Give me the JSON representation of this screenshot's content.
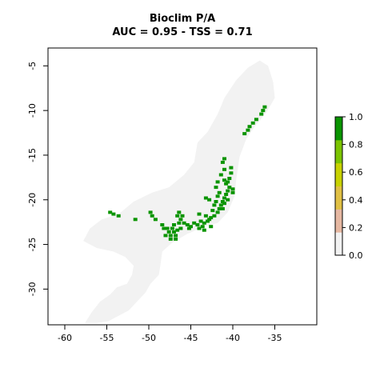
{
  "chart_data": {
    "type": "heatmap",
    "title": "Bioclim P/A",
    "subtitle": "AUC = 0.95 - TSS = 0.71",
    "xlabel": "",
    "ylabel": "",
    "xlim": [
      -62,
      -30
    ],
    "ylim": [
      -34,
      -3
    ],
    "x_ticks": [
      "-60",
      "-55",
      "-50",
      "-45",
      "-40",
      "-35"
    ],
    "y_ticks": [
      "-5",
      "-10",
      "-15",
      "-20",
      "-25",
      "-30"
    ],
    "grid": false,
    "legend": {
      "placement": "right",
      "range": [
        0,
        1
      ],
      "ticks": [
        "0.0",
        "0.2",
        "0.4",
        "0.6",
        "0.8",
        "1.0"
      ],
      "colors": [
        "#f2f2f2",
        "#e6b8a2",
        "#e0c044",
        "#c8d200",
        "#7bc400",
        "#0a9400"
      ]
    },
    "background_region_color": "#f2f2f2",
    "presence_color": "#0a9400",
    "presence_value": 1.0,
    "absence_value": 0.0,
    "background_region": [
      [
        -57.6,
        -33.8
      ],
      [
        -56.8,
        -32.6
      ],
      [
        -55.8,
        -31.4
      ],
      [
        -54.6,
        -30.6
      ],
      [
        -53.8,
        -29.8
      ],
      [
        -52.6,
        -29.4
      ],
      [
        -52.0,
        -28.4
      ],
      [
        -51.8,
        -27.4
      ],
      [
        -52.8,
        -26.4
      ],
      [
        -54.2,
        -25.8
      ],
      [
        -56.2,
        -25.4
      ],
      [
        -57.8,
        -24.6
      ],
      [
        -57.0,
        -23.2
      ],
      [
        -55.6,
        -22.2
      ],
      [
        -53.6,
        -21.6
      ],
      [
        -51.8,
        -20.2
      ],
      [
        -49.6,
        -19.2
      ],
      [
        -47.6,
        -18.6
      ],
      [
        -45.8,
        -17.2
      ],
      [
        -44.6,
        -15.8
      ],
      [
        -44.2,
        -13.6
      ],
      [
        -43.0,
        -12.4
      ],
      [
        -41.8,
        -10.4
      ],
      [
        -41.0,
        -8.6
      ],
      [
        -39.6,
        -6.6
      ],
      [
        -38.2,
        -5.2
      ],
      [
        -36.8,
        -4.4
      ],
      [
        -35.8,
        -5.0
      ],
      [
        -35.2,
        -6.8
      ],
      [
        -35.0,
        -8.6
      ],
      [
        -36.0,
        -10.2
      ],
      [
        -37.4,
        -11.8
      ],
      [
        -38.4,
        -13.2
      ],
      [
        -39.2,
        -15.2
      ],
      [
        -39.6,
        -17.8
      ],
      [
        -39.8,
        -19.6
      ],
      [
        -40.6,
        -21.4
      ],
      [
        -41.8,
        -22.6
      ],
      [
        -43.4,
        -23.0
      ],
      [
        -45.4,
        -23.8
      ],
      [
        -47.2,
        -24.8
      ],
      [
        -48.4,
        -25.8
      ],
      [
        -48.6,
        -27.2
      ],
      [
        -48.8,
        -28.4
      ],
      [
        -49.8,
        -29.4
      ],
      [
        -50.4,
        -30.4
      ],
      [
        -51.4,
        -31.4
      ],
      [
        -52.4,
        -32.4
      ],
      [
        -53.6,
        -33.0
      ],
      [
        -54.8,
        -33.6
      ],
      [
        -56.2,
        -33.8
      ]
    ],
    "presence_cells": [
      [
        -36.2,
        -9.6
      ],
      [
        -36.4,
        -10.0
      ],
      [
        -36.6,
        -10.4
      ],
      [
        -37.2,
        -11.0
      ],
      [
        -37.6,
        -11.4
      ],
      [
        -38.0,
        -11.8
      ],
      [
        -38.2,
        -12.2
      ],
      [
        -38.6,
        -12.6
      ],
      [
        -40.2,
        -16.4
      ],
      [
        -40.2,
        -17.0
      ],
      [
        -40.4,
        -17.6
      ],
      [
        -40.6,
        -18.0
      ],
      [
        -40.8,
        -18.2
      ],
      [
        -41.0,
        -15.4
      ],
      [
        -41.2,
        -15.8
      ],
      [
        -41.0,
        -16.6
      ],
      [
        -41.4,
        -17.2
      ],
      [
        -41.0,
        -17.8
      ],
      [
        -40.4,
        -18.6
      ],
      [
        -40.6,
        -19.0
      ],
      [
        -40.8,
        -19.4
      ],
      [
        -41.0,
        -19.8
      ],
      [
        -41.2,
        -20.2
      ],
      [
        -41.4,
        -20.6
      ],
      [
        -41.6,
        -21.0
      ],
      [
        -41.0,
        -20.4
      ],
      [
        -40.6,
        -20.0
      ],
      [
        -41.8,
        -19.6
      ],
      [
        -41.6,
        -19.2
      ],
      [
        -42.0,
        -20.2
      ],
      [
        -42.2,
        -20.6
      ],
      [
        -41.8,
        -21.4
      ],
      [
        -41.2,
        -21.0
      ],
      [
        -42.4,
        -21.2
      ],
      [
        -42.0,
        -18.6
      ],
      [
        -41.8,
        -18.0
      ],
      [
        -40.0,
        -19.2
      ],
      [
        -40.0,
        -18.8
      ],
      [
        -42.2,
        -21.8
      ],
      [
        -42.6,
        -22.0
      ],
      [
        -43.0,
        -22.4
      ],
      [
        -43.4,
        -22.6
      ],
      [
        -43.8,
        -22.4
      ],
      [
        -44.2,
        -22.8
      ],
      [
        -44.6,
        -22.6
      ],
      [
        -45.0,
        -23.0
      ],
      [
        -45.4,
        -22.8
      ],
      [
        -45.2,
        -23.2
      ],
      [
        -43.2,
        -21.8
      ],
      [
        -42.8,
        -22.2
      ],
      [
        -44.0,
        -23.2
      ],
      [
        -43.6,
        -23.0
      ],
      [
        -42.6,
        -23.0
      ],
      [
        -46.2,
        -23.2
      ],
      [
        -46.6,
        -23.4
      ],
      [
        -47.0,
        -23.6
      ],
      [
        -47.2,
        -23.2
      ],
      [
        -47.6,
        -23.6
      ],
      [
        -47.4,
        -24.0
      ],
      [
        -46.8,
        -24.0
      ],
      [
        -47.8,
        -23.2
      ],
      [
        -47.0,
        -22.8
      ],
      [
        -46.4,
        -22.6
      ],
      [
        -46.6,
        -21.8
      ],
      [
        -46.4,
        -21.4
      ],
      [
        -46.2,
        -22.2
      ],
      [
        -45.8,
        -22.6
      ],
      [
        -46.0,
        -21.8
      ],
      [
        -48.2,
        -23.2
      ],
      [
        -48.4,
        -22.8
      ],
      [
        -49.2,
        -22.2
      ],
      [
        -49.6,
        -21.8
      ],
      [
        -49.8,
        -21.4
      ],
      [
        -47.4,
        -24.4
      ],
      [
        -46.8,
        -24.4
      ],
      [
        -48.0,
        -24.0
      ],
      [
        -51.6,
        -22.2
      ],
      [
        -53.6,
        -21.8
      ],
      [
        -54.2,
        -21.6
      ],
      [
        -54.6,
        -21.4
      ],
      [
        -42.8,
        -20.0
      ],
      [
        -43.2,
        -19.8
      ],
      [
        -44.0,
        -21.6
      ],
      [
        -43.4,
        -23.4
      ]
    ]
  }
}
